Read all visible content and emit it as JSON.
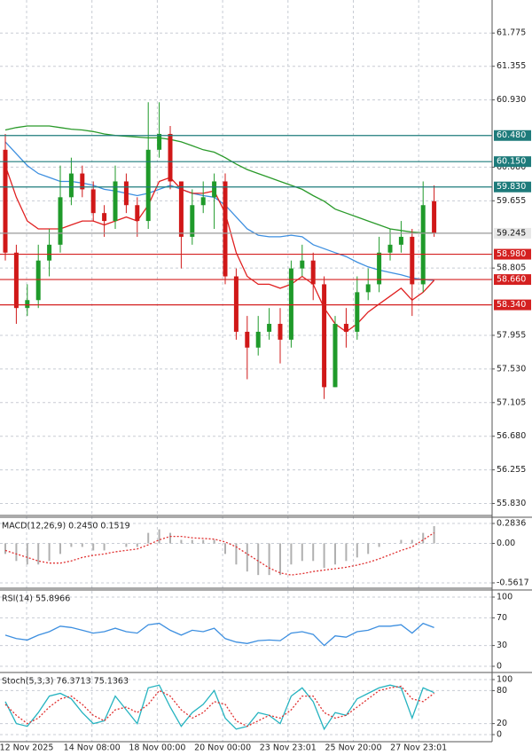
{
  "chart_data": [
    {
      "type": "candlestick",
      "x_labels": [
        "12 Nov 2025",
        "14 Nov 08:00",
        "18 Nov 00:00",
        "20 Nov 00:00",
        "23 Nov 23:01",
        "25 Nov 20:00",
        "27 Nov 23:01"
      ],
      "open": [
        60.3,
        59.0,
        58.3,
        58.4,
        58.9,
        59.1,
        59.7,
        60.0,
        59.8,
        59.5,
        59.4,
        59.9,
        59.6,
        59.4,
        60.3,
        60.5,
        59.9,
        59.2,
        59.6,
        59.7,
        59.9,
        58.7,
        58.0,
        57.8,
        58.0,
        58.1,
        57.9,
        58.8,
        58.9,
        58.6,
        57.3,
        58.1,
        58.0,
        58.5,
        58.6,
        59.0,
        59.1,
        59.2,
        58.6,
        59.65
      ],
      "high": [
        60.5,
        59.1,
        58.6,
        59.1,
        59.3,
        60.1,
        60.2,
        60.1,
        59.9,
        59.6,
        60.1,
        60.0,
        59.7,
        60.9,
        60.9,
        60.6,
        59.9,
        59.8,
        59.9,
        60.0,
        60.0,
        58.8,
        58.2,
        58.2,
        58.3,
        58.3,
        58.9,
        59.1,
        59.0,
        58.7,
        58.2,
        58.3,
        58.7,
        58.8,
        59.2,
        59.3,
        59.4,
        59.3,
        59.9,
        59.85
      ],
      "low": [
        58.9,
        58.1,
        58.2,
        58.3,
        58.7,
        59.0,
        59.6,
        59.7,
        59.4,
        59.2,
        59.3,
        59.5,
        59.2,
        59.3,
        60.2,
        59.8,
        58.8,
        59.1,
        59.5,
        59.3,
        58.6,
        57.9,
        57.4,
        57.7,
        57.9,
        57.6,
        57.8,
        58.7,
        58.4,
        57.15,
        57.3,
        57.8,
        57.9,
        58.4,
        58.5,
        58.9,
        59.0,
        58.2,
        58.5,
        59.2
      ],
      "close": [
        59.0,
        58.3,
        58.4,
        58.9,
        59.1,
        59.7,
        60.0,
        59.8,
        59.5,
        59.4,
        59.9,
        59.6,
        59.4,
        60.3,
        60.5,
        59.9,
        59.2,
        59.6,
        59.7,
        59.9,
        58.7,
        58.0,
        57.8,
        58.0,
        58.1,
        57.9,
        58.8,
        58.9,
        58.6,
        57.3,
        58.1,
        58.0,
        58.5,
        58.6,
        59.0,
        59.1,
        59.2,
        58.6,
        59.6,
        59.245
      ],
      "up_color": "#1f9a2a",
      "down_color": "#d01818",
      "series": [
        {
          "color": "#2a9a2a",
          "values": [
            60.55,
            60.58,
            60.6,
            60.6,
            60.6,
            60.58,
            60.56,
            60.55,
            60.53,
            60.5,
            60.48,
            60.47,
            60.46,
            60.45,
            60.45,
            60.43,
            60.4,
            60.35,
            60.3,
            60.27,
            60.2,
            60.12,
            60.05,
            60.0,
            59.95,
            59.9,
            59.85,
            59.8,
            59.72,
            59.65,
            59.55,
            59.5,
            59.45,
            59.4,
            59.35,
            59.3,
            59.28,
            59.26,
            59.25,
            59.25
          ]
        },
        {
          "color": "#3d8fe0",
          "values": [
            60.4,
            60.25,
            60.1,
            60.0,
            59.95,
            59.9,
            59.9,
            59.88,
            59.85,
            59.8,
            59.78,
            59.75,
            59.72,
            59.75,
            59.8,
            59.85,
            59.8,
            59.75,
            59.72,
            59.7,
            59.6,
            59.45,
            59.3,
            59.22,
            59.2,
            59.2,
            59.22,
            59.2,
            59.1,
            59.05,
            59.0,
            58.95,
            58.88,
            58.82,
            58.78,
            58.75,
            58.72,
            58.68,
            58.66,
            58.65
          ]
        },
        {
          "color": "#e02020",
          "values": [
            60.1,
            59.7,
            59.4,
            59.3,
            59.3,
            59.3,
            59.35,
            59.4,
            59.4,
            59.35,
            59.4,
            59.45,
            59.4,
            59.6,
            59.9,
            59.95,
            59.8,
            59.75,
            59.75,
            59.78,
            59.5,
            59.0,
            58.7,
            58.6,
            58.6,
            58.55,
            58.6,
            58.7,
            58.6,
            58.3,
            58.1,
            58.0,
            58.1,
            58.25,
            58.35,
            58.45,
            58.55,
            58.4,
            58.5,
            58.65
          ]
        }
      ],
      "levels": [
        {
          "value": 60.48,
          "label": "60.480",
          "color": "#1e7b7b"
        },
        {
          "value": 60.15,
          "label": "60.150",
          "color": "#1e7b7b"
        },
        {
          "value": 59.83,
          "label": "59.830",
          "color": "#1e7b7b"
        },
        {
          "value": 59.245,
          "label": "59.245",
          "color": "#9a9a9a"
        },
        {
          "value": 58.98,
          "label": "58.980",
          "color": "#d42020"
        },
        {
          "value": 58.66,
          "label": "58.660",
          "color": "#d42020"
        },
        {
          "value": 58.34,
          "label": "58.340",
          "color": "#d42020"
        }
      ],
      "ylim": [
        55.69,
        62.17
      ],
      "yticks": [
        61.775,
        61.355,
        {
          "value": 60.93,
          "label": "60.930"
        },
        {
          "value": 60.08,
          "label": "60.080"
        },
        59.655,
        58.805,
        57.955,
        {
          "value": 57.53,
          "label": "57.530"
        },
        57.105,
        {
          "value": 56.68,
          "label": "56.680"
        },
        56.255,
        {
          "value": 55.83,
          "label": "55.830"
        }
      ],
      "grid": true
    },
    {
      "type": "macd",
      "label": "MACD(12,26,9) 0.2450 0.1519",
      "histogram": {
        "color": "#b0b0b0",
        "values": [
          -0.15,
          -0.25,
          -0.3,
          -0.3,
          -0.25,
          -0.15,
          -0.05,
          -0.05,
          -0.1,
          -0.1,
          0.0,
          -0.05,
          -0.05,
          0.15,
          0.2,
          0.15,
          0.05,
          0.05,
          0.05,
          0.05,
          -0.15,
          -0.3,
          -0.4,
          -0.45,
          -0.45,
          -0.45,
          -0.3,
          -0.25,
          -0.25,
          -0.35,
          -0.3,
          -0.25,
          -0.2,
          -0.15,
          -0.05,
          0.0,
          0.05,
          0.05,
          0.15,
          0.245
        ]
      },
      "signal": {
        "color": "#e03030",
        "values": [
          -0.1,
          -0.15,
          -0.2,
          -0.25,
          -0.28,
          -0.28,
          -0.25,
          -0.2,
          -0.17,
          -0.15,
          -0.12,
          -0.1,
          -0.08,
          -0.02,
          0.05,
          0.1,
          0.1,
          0.08,
          0.07,
          0.06,
          0.02,
          -0.05,
          -0.15,
          -0.25,
          -0.35,
          -0.42,
          -0.45,
          -0.43,
          -0.4,
          -0.38,
          -0.36,
          -0.34,
          -0.31,
          -0.27,
          -0.22,
          -0.16,
          -0.1,
          -0.05,
          0.05,
          0.1519
        ]
      },
      "ylim": [
        -0.625,
        0.347
      ],
      "yticks": [
        0.2836,
        {
          "value": 0,
          "label": "0.00"
        },
        -0.5617
      ],
      "grid": true
    },
    {
      "type": "line",
      "label": "RSI(14) 55.8966",
      "series": [
        {
          "color": "#3d8fe0",
          "dotted": false,
          "values": [
            45,
            40,
            38,
            45,
            50,
            58,
            56,
            52,
            48,
            50,
            55,
            50,
            48,
            60,
            62,
            52,
            45,
            52,
            50,
            55,
            40,
            35,
            33,
            37,
            38,
            37,
            48,
            50,
            46,
            30,
            44,
            42,
            50,
            52,
            58,
            58,
            60,
            48,
            62,
            55.8966
          ]
        }
      ],
      "ylim": [
        -7.7,
        107.7
      ],
      "yticks": [
        100,
        70,
        30,
        0
      ],
      "grid": true
    },
    {
      "type": "line",
      "label": "Stoch(5,3,3) 76.3713 75.1363",
      "series": [
        {
          "color": "#25b3c0",
          "dotted": false,
          "values": [
            60,
            20,
            15,
            40,
            70,
            75,
            65,
            40,
            20,
            25,
            70,
            45,
            20,
            85,
            90,
            50,
            15,
            40,
            55,
            80,
            30,
            10,
            15,
            40,
            35,
            20,
            70,
            85,
            60,
            10,
            40,
            35,
            65,
            75,
            85,
            90,
            85,
            30,
            85,
            76.3713
          ]
        },
        {
          "color": "#e03030",
          "dotted": true,
          "values": [
            55,
            35,
            20,
            30,
            50,
            65,
            70,
            55,
            35,
            25,
            45,
            50,
            40,
            55,
            80,
            70,
            45,
            30,
            40,
            60,
            55,
            25,
            15,
            25,
            35,
            30,
            45,
            70,
            70,
            40,
            30,
            35,
            50,
            65,
            80,
            85,
            88,
            65,
            60,
            75.1363
          ]
        }
      ],
      "ylim": [
        -11.3,
        109.7
      ],
      "yticks": [
        100,
        80,
        20,
        0
      ],
      "grid": true
    }
  ]
}
